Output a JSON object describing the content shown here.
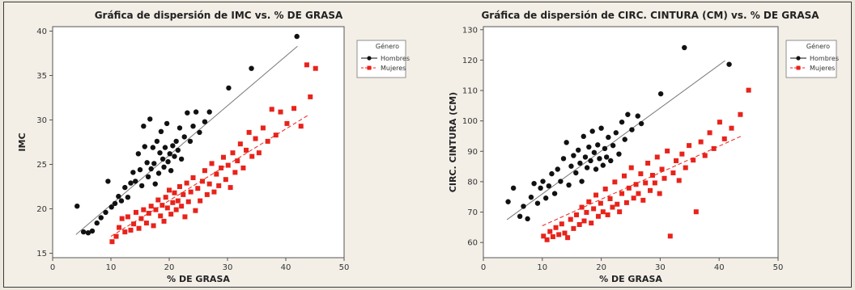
{
  "chart_data": [
    {
      "type": "scatter",
      "title": "Gráfica de dispersión de IMC vs. % DE GRASA",
      "xlabel": "% DE GRASA",
      "ylabel": "IMC",
      "xlim": [
        0,
        50
      ],
      "ylim": [
        14.5,
        40.5
      ],
      "xticks": [
        "0",
        "10",
        "20",
        "30",
        "40",
        "50"
      ],
      "yticks": [
        "15",
        "20",
        "25",
        "30",
        "35",
        "40"
      ],
      "grid": false,
      "legend": {
        "title": "Género",
        "position": "top-right"
      },
      "series": [
        {
          "name": "Hombres",
          "color": "#111111",
          "marker": "circle",
          "fit_line": {
            "style": "solid",
            "x": [
              4,
              42
            ],
            "y": [
              17.1,
              38.3
            ]
          },
          "points": [
            [
              4.2,
              20.3
            ],
            [
              5.3,
              17.4
            ],
            [
              6.1,
              17.3
            ],
            [
              6.8,
              17.5
            ],
            [
              7.6,
              18.4
            ],
            [
              8.3,
              19.0
            ],
            [
              9.1,
              19.6
            ],
            [
              9.5,
              23.1
            ],
            [
              10.1,
              20.2
            ],
            [
              10.7,
              20.6
            ],
            [
              11.3,
              21.4
            ],
            [
              11.8,
              20.9
            ],
            [
              12.4,
              22.4
            ],
            [
              12.9,
              21.3
            ],
            [
              13.4,
              22.9
            ],
            [
              13.8,
              24.1
            ],
            [
              14.2,
              23.1
            ],
            [
              14.7,
              26.2
            ],
            [
              15.0,
              24.4
            ],
            [
              15.3,
              22.6
            ],
            [
              15.6,
              29.3
            ],
            [
              15.8,
              27.0
            ],
            [
              16.2,
              25.2
            ],
            [
              16.4,
              23.6
            ],
            [
              16.7,
              30.1
            ],
            [
              16.9,
              24.5
            ],
            [
              17.2,
              26.9
            ],
            [
              17.4,
              25.1
            ],
            [
              17.6,
              22.8
            ],
            [
              17.9,
              27.6
            ],
            [
              18.2,
              24.0
            ],
            [
              18.4,
              26.3
            ],
            [
              18.6,
              28.7
            ],
            [
              18.9,
              25.6
            ],
            [
              19.1,
              24.7
            ],
            [
              19.3,
              26.9
            ],
            [
              19.6,
              29.6
            ],
            [
              19.8,
              25.3
            ],
            [
              20.1,
              26.2
            ],
            [
              20.3,
              24.3
            ],
            [
              20.6,
              27.1
            ],
            [
              20.9,
              25.9
            ],
            [
              21.2,
              27.6
            ],
            [
              21.5,
              26.6
            ],
            [
              21.8,
              29.1
            ],
            [
              22.1,
              25.6
            ],
            [
              22.6,
              28.1
            ],
            [
              23.1,
              30.8
            ],
            [
              23.6,
              27.6
            ],
            [
              24.1,
              29.3
            ],
            [
              24.6,
              30.9
            ],
            [
              25.2,
              28.6
            ],
            [
              26.1,
              29.8
            ],
            [
              26.9,
              30.9
            ],
            [
              30.2,
              33.6
            ],
            [
              34.1,
              35.8
            ],
            [
              41.9,
              39.4
            ]
          ]
        },
        {
          "name": "Mujeres",
          "color": "#e8231b",
          "marker": "square",
          "fit_line": {
            "style": "dashed",
            "x": [
              10,
              44
            ],
            "y": [
              16.9,
              30.6
            ]
          },
          "points": [
            [
              10.2,
              16.3
            ],
            [
              10.9,
              16.9
            ],
            [
              11.4,
              17.9
            ],
            [
              11.9,
              18.9
            ],
            [
              12.4,
              17.4
            ],
            [
              12.9,
              19.1
            ],
            [
              13.4,
              17.6
            ],
            [
              13.9,
              18.3
            ],
            [
              14.3,
              19.6
            ],
            [
              14.8,
              17.8
            ],
            [
              15.2,
              18.9
            ],
            [
              15.6,
              19.9
            ],
            [
              16.1,
              18.4
            ],
            [
              16.5,
              19.5
            ],
            [
              16.9,
              20.3
            ],
            [
              17.3,
              18.1
            ],
            [
              17.7,
              19.9
            ],
            [
              18.1,
              21.0
            ],
            [
              18.5,
              19.2
            ],
            [
              18.8,
              20.4
            ],
            [
              19.1,
              18.6
            ],
            [
              19.4,
              21.3
            ],
            [
              19.7,
              20.1
            ],
            [
              20.0,
              22.1
            ],
            [
              20.3,
              19.4
            ],
            [
              20.6,
              20.7
            ],
            [
              20.9,
              21.8
            ],
            [
              21.2,
              19.9
            ],
            [
              21.5,
              20.9
            ],
            [
              21.8,
              22.5
            ],
            [
              22.1,
              20.3
            ],
            [
              22.4,
              21.6
            ],
            [
              22.7,
              19.1
            ],
            [
              23.0,
              22.9
            ],
            [
              23.3,
              20.8
            ],
            [
              23.7,
              21.9
            ],
            [
              24.1,
              23.5
            ],
            [
              24.5,
              19.8
            ],
            [
              24.9,
              22.3
            ],
            [
              25.3,
              20.9
            ],
            [
              25.7,
              23.1
            ],
            [
              26.1,
              24.3
            ],
            [
              26.5,
              21.6
            ],
            [
              26.9,
              22.8
            ],
            [
              27.3,
              25.1
            ],
            [
              27.7,
              21.9
            ],
            [
              28.1,
              23.9
            ],
            [
              28.5,
              22.6
            ],
            [
              28.9,
              24.6
            ],
            [
              29.3,
              25.8
            ],
            [
              29.7,
              23.3
            ],
            [
              30.1,
              24.9
            ],
            [
              30.5,
              22.4
            ],
            [
              30.9,
              26.3
            ],
            [
              31.3,
              24.1
            ],
            [
              31.7,
              25.4
            ],
            [
              32.2,
              27.3
            ],
            [
              32.7,
              24.6
            ],
            [
              33.2,
              26.6
            ],
            [
              33.7,
              28.6
            ],
            [
              34.2,
              25.9
            ],
            [
              34.8,
              27.9
            ],
            [
              35.4,
              26.3
            ],
            [
              36.1,
              29.1
            ],
            [
              36.9,
              27.6
            ],
            [
              37.6,
              31.2
            ],
            [
              38.3,
              28.3
            ],
            [
              39.1,
              30.9
            ],
            [
              40.2,
              29.6
            ],
            [
              41.4,
              31.3
            ],
            [
              42.6,
              29.3
            ],
            [
              43.6,
              36.2
            ],
            [
              44.2,
              32.6
            ],
            [
              45.1,
              35.8
            ]
          ]
        }
      ]
    },
    {
      "type": "scatter",
      "title": "Gráfica de dispersión de CIRC. CINTURA (CM) vs. % DE GRASA",
      "xlabel": "% DE GRASA",
      "ylabel": "CIRC. CINTURA (CM)",
      "xlim": [
        0,
        50
      ],
      "ylim": [
        55,
        131
      ],
      "xticks": [
        "0",
        "10",
        "20",
        "30",
        "40",
        "50"
      ],
      "yticks": [
        "60",
        "70",
        "80",
        "90",
        "100",
        "110",
        "120",
        "130"
      ],
      "grid": false,
      "legend": {
        "title": "Género",
        "position": "top-right"
      },
      "series": [
        {
          "name": "Hombres",
          "color": "#111111",
          "marker": "circle",
          "fit_line": {
            "style": "solid",
            "x": [
              4,
              41
            ],
            "y": [
              67.5,
              119.8
            ]
          },
          "points": [
            [
              4.2,
              73.4
            ],
            [
              5.1,
              77.9
            ],
            [
              6.2,
              68.6
            ],
            [
              6.8,
              71.9
            ],
            [
              7.5,
              67.8
            ],
            [
              8.1,
              74.9
            ],
            [
              8.6,
              79.4
            ],
            [
              9.2,
              72.9
            ],
            [
              9.7,
              77.9
            ],
            [
              10.1,
              80.1
            ],
            [
              10.6,
              74.6
            ],
            [
              11.1,
              78.6
            ],
            [
              11.6,
              82.6
            ],
            [
              12.1,
              76.1
            ],
            [
              12.6,
              84.1
            ],
            [
              13.1,
              80.1
            ],
            [
              13.6,
              87.6
            ],
            [
              14.1,
              92.9
            ],
            [
              14.5,
              78.9
            ],
            [
              14.9,
              85.1
            ],
            [
              15.3,
              88.6
            ],
            [
              15.7,
              82.9
            ],
            [
              16.1,
              90.4
            ],
            [
              16.4,
              86.1
            ],
            [
              16.7,
              80.1
            ],
            [
              17.0,
              94.9
            ],
            [
              17.3,
              88.1
            ],
            [
              17.6,
              84.6
            ],
            [
              17.9,
              91.4
            ],
            [
              18.2,
              86.9
            ],
            [
              18.5,
              96.6
            ],
            [
              18.8,
              89.6
            ],
            [
              19.1,
              84.1
            ],
            [
              19.4,
              92.1
            ],
            [
              19.7,
              87.6
            ],
            [
              20.0,
              97.6
            ],
            [
              20.3,
              85.4
            ],
            [
              20.6,
              90.9
            ],
            [
              20.9,
              88.1
            ],
            [
              21.2,
              94.6
            ],
            [
              21.6,
              86.9
            ],
            [
              22.0,
              91.9
            ],
            [
              22.5,
              96.1
            ],
            [
              23.0,
              89.1
            ],
            [
              23.5,
              99.6
            ],
            [
              24.0,
              93.9
            ],
            [
              24.5,
              102.1
            ],
            [
              25.2,
              97.1
            ],
            [
              26.2,
              101.6
            ],
            [
              26.8,
              99.1
            ],
            [
              30.1,
              108.9
            ],
            [
              34.1,
              124.1
            ],
            [
              41.7,
              118.6
            ]
          ]
        },
        {
          "name": "Mujeres",
          "color": "#e8231b",
          "marker": "square",
          "fit_line": {
            "style": "dashed",
            "x": [
              10,
              44
            ],
            "y": [
              65.5,
              95.2
            ]
          },
          "points": [
            [
              10.2,
              62.1
            ],
            [
              10.8,
              60.9
            ],
            [
              11.3,
              63.6
            ],
            [
              11.8,
              61.9
            ],
            [
              12.3,
              64.9
            ],
            [
              12.8,
              62.6
            ],
            [
              13.3,
              66.1
            ],
            [
              13.8,
              63.1
            ],
            [
              14.3,
              61.6
            ],
            [
              14.8,
              67.6
            ],
            [
              15.3,
              64.6
            ],
            [
              15.8,
              69.1
            ],
            [
              16.3,
              65.9
            ],
            [
              16.7,
              71.6
            ],
            [
              17.1,
              67.1
            ],
            [
              17.5,
              69.9
            ],
            [
              17.9,
              73.4
            ],
            [
              18.3,
              66.4
            ],
            [
              18.7,
              71.1
            ],
            [
              19.1,
              75.6
            ],
            [
              19.5,
              68.6
            ],
            [
              19.9,
              72.9
            ],
            [
              20.3,
              70.1
            ],
            [
              20.7,
              77.6
            ],
            [
              21.1,
              69.1
            ],
            [
              21.5,
              74.4
            ],
            [
              21.9,
              71.6
            ],
            [
              22.3,
              79.9
            ],
            [
              22.7,
              72.6
            ],
            [
              23.1,
              70.1
            ],
            [
              23.5,
              76.1
            ],
            [
              23.9,
              81.9
            ],
            [
              24.3,
              73.1
            ],
            [
              24.7,
              77.9
            ],
            [
              25.1,
              84.6
            ],
            [
              25.5,
              74.6
            ],
            [
              25.9,
              79.1
            ],
            [
              26.3,
              76.1
            ],
            [
              26.7,
              82.6
            ],
            [
              27.1,
              73.9
            ],
            [
              27.5,
              79.6
            ],
            [
              27.9,
              86.1
            ],
            [
              28.3,
              77.1
            ],
            [
              28.7,
              82.1
            ],
            [
              29.1,
              79.6
            ],
            [
              29.5,
              88.1
            ],
            [
              29.9,
              76.1
            ],
            [
              30.3,
              84.1
            ],
            [
              30.7,
              81.1
            ],
            [
              31.2,
              90.1
            ],
            [
              31.7,
              62.1
            ],
            [
              32.2,
              82.9
            ],
            [
              32.7,
              86.9
            ],
            [
              33.2,
              80.4
            ],
            [
              33.7,
              89.1
            ],
            [
              34.3,
              84.6
            ],
            [
              34.9,
              91.9
            ],
            [
              35.6,
              87.1
            ],
            [
              36.1,
              70.1
            ],
            [
              36.9,
              93.1
            ],
            [
              37.6,
              88.6
            ],
            [
              38.4,
              96.1
            ],
            [
              39.1,
              90.9
            ],
            [
              40.1,
              99.6
            ],
            [
              40.9,
              94.1
            ],
            [
              42.1,
              97.6
            ],
            [
              43.6,
              102.1
            ],
            [
              45.0,
              110.1
            ]
          ]
        }
      ]
    }
  ]
}
